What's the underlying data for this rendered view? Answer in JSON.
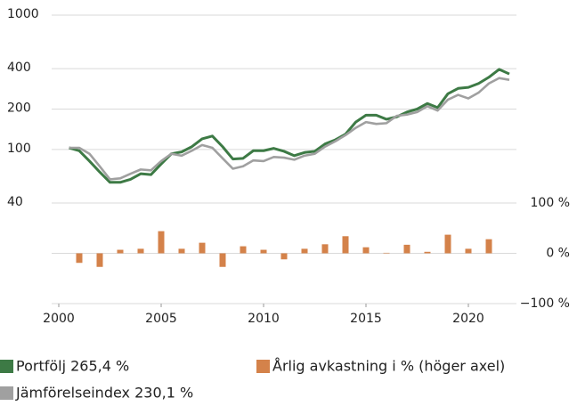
{
  "chart_data": {
    "type": "line",
    "x": [
      2000.5,
      2001,
      2001.5,
      2002,
      2002.5,
      2003,
      2003.5,
      2004,
      2004.5,
      2005,
      2005.5,
      2006,
      2006.5,
      2007,
      2007.5,
      2008,
      2008.5,
      2009,
      2009.5,
      2010,
      2010.5,
      2011,
      2011.5,
      2012,
      2012.5,
      2013,
      2013.5,
      2014,
      2014.5,
      2015,
      2015.5,
      2016,
      2016.5,
      2017,
      2017.5,
      2018,
      2018.5,
      2019,
      2019.5,
      2020,
      2020.5,
      2021,
      2021.5,
      2022
    ],
    "series": [
      {
        "name": "Portfölj 265,4 %",
        "color": "#3d7a45",
        "values": [
          103,
          98,
          82,
          68,
          57,
          57,
          60,
          66,
          65,
          78,
          93,
          96,
          105,
          120,
          126,
          105,
          85,
          86,
          98,
          98,
          102,
          97,
          90,
          95,
          97,
          110,
          118,
          130,
          160,
          180,
          180,
          168,
          175,
          190,
          200,
          220,
          205,
          260,
          285,
          290,
          310,
          345,
          395,
          365
        ]
      },
      {
        "name": "Jämförelseindex 230,1 %",
        "color": "#a0a0a0",
        "values": [
          103,
          103,
          93,
          75,
          60,
          61,
          66,
          71,
          70,
          82,
          93,
          90,
          98,
          108,
          103,
          86,
          72,
          75,
          83,
          82,
          88,
          87,
          84,
          90,
          93,
          105,
          115,
          128,
          145,
          160,
          155,
          157,
          178,
          182,
          190,
          210,
          195,
          235,
          255,
          240,
          265,
          310,
          340,
          330
        ]
      },
      {
        "name": "Årlig avkastning i % (höger axel)",
        "color": "#d4824a",
        "type": "bar",
        "axis": "y2",
        "x": [
          2001,
          2002,
          2003,
          2004,
          2005,
          2006,
          2007,
          2008,
          2009,
          2010,
          2011,
          2012,
          2013,
          2014,
          2015,
          2016,
          2017,
          2018,
          2019,
          2020,
          2021
        ],
        "values": [
          -19,
          -27,
          7,
          9,
          44,
          9,
          21,
          -27,
          14,
          7,
          -12,
          9,
          18,
          34,
          12,
          1,
          17,
          3,
          37,
          9,
          28
        ]
      }
    ],
    "xlim": [
      2000,
      2022.5
    ],
    "xticks": [
      2000,
      2005,
      2010,
      2015,
      2020
    ],
    "ylim": [
      40,
      1000
    ],
    "yticks": [
      40,
      100,
      200,
      400,
      1000
    ],
    "log_y": true,
    "y2lim": [
      -100,
      100
    ],
    "y2ticks": [
      {
        "value": -100,
        "label": "−100 %"
      },
      {
        "value": 0,
        "label": "0 %"
      },
      {
        "value": 100,
        "label": "100 %"
      }
    ],
    "grid": true,
    "legend": "bottom"
  }
}
